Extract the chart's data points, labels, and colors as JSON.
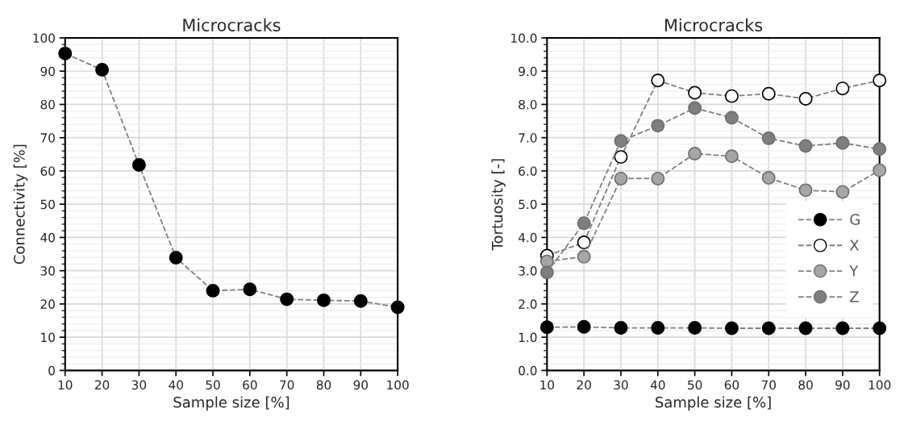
{
  "chart_data": [
    {
      "type": "line",
      "title": "Microcracks",
      "xlabel": "Sample size [%]",
      "ylabel": "Connectivity [%]",
      "x": [
        10,
        20,
        30,
        40,
        50,
        60,
        70,
        80,
        90,
        100
      ],
      "series": [
        {
          "color": "#000000",
          "values": [
            95.3,
            90.4,
            61.8,
            33.9,
            24.0,
            24.4,
            21.4,
            21.1,
            20.9,
            19.0
          ]
        }
      ],
      "xlim": [
        10,
        100
      ],
      "xticks": [
        10,
        20,
        30,
        40,
        50,
        60,
        70,
        80,
        90,
        100
      ],
      "ylim": [
        0,
        100
      ],
      "yticks": [
        0,
        10,
        20,
        30,
        40,
        50,
        60,
        70,
        80,
        90,
        100
      ],
      "grid": true,
      "marker": "circle",
      "line_style": "dashed"
    },
    {
      "type": "line",
      "title": "Microcracks",
      "xlabel": "Sample size [%]",
      "ylabel": "Tortuosity [-]",
      "x": [
        10,
        20,
        30,
        40,
        50,
        60,
        70,
        80,
        90,
        100
      ],
      "series": [
        {
          "name": "G",
          "color": "#000000",
          "values": [
            1.3,
            1.31,
            1.28,
            1.28,
            1.28,
            1.27,
            1.27,
            1.27,
            1.27,
            1.27
          ]
        },
        {
          "name": "X",
          "color": "#ffffff",
          "values": [
            3.45,
            3.85,
            6.42,
            8.72,
            8.35,
            8.25,
            8.32,
            8.17,
            8.48,
            8.72
          ]
        },
        {
          "name": "Y",
          "color": "#a6a6a6",
          "values": [
            3.28,
            3.42,
            5.77,
            5.77,
            6.52,
            6.44,
            5.79,
            5.42,
            5.37,
            6.02
          ]
        },
        {
          "name": "Z",
          "color": "#7f7f7f",
          "values": [
            2.95,
            4.43,
            6.9,
            7.36,
            7.89,
            7.6,
            6.98,
            6.75,
            6.84,
            6.66
          ]
        }
      ],
      "xlim": [
        10,
        100
      ],
      "xticks": [
        10,
        20,
        30,
        40,
        50,
        60,
        70,
        80,
        90,
        100
      ],
      "ylim": [
        0,
        10
      ],
      "yticks": [
        {
          "value": 0,
          "label": "0.0"
        },
        {
          "value": 1,
          "label": "1.0"
        },
        {
          "value": 2,
          "label": "2.0"
        },
        {
          "value": 3,
          "label": "3.0"
        },
        {
          "value": 4,
          "label": "4.0"
        },
        {
          "value": 5,
          "label": "5.0"
        },
        {
          "value": 6,
          "label": "6.0"
        },
        {
          "value": 7,
          "label": "7.0"
        },
        {
          "value": 8,
          "label": "8.0"
        },
        {
          "value": 9,
          "label": "9.0"
        },
        {
          "value": 10,
          "label": "10.0"
        }
      ],
      "grid": true,
      "legend": "bottom right",
      "marker": "circle",
      "line_style": "dashed"
    }
  ]
}
